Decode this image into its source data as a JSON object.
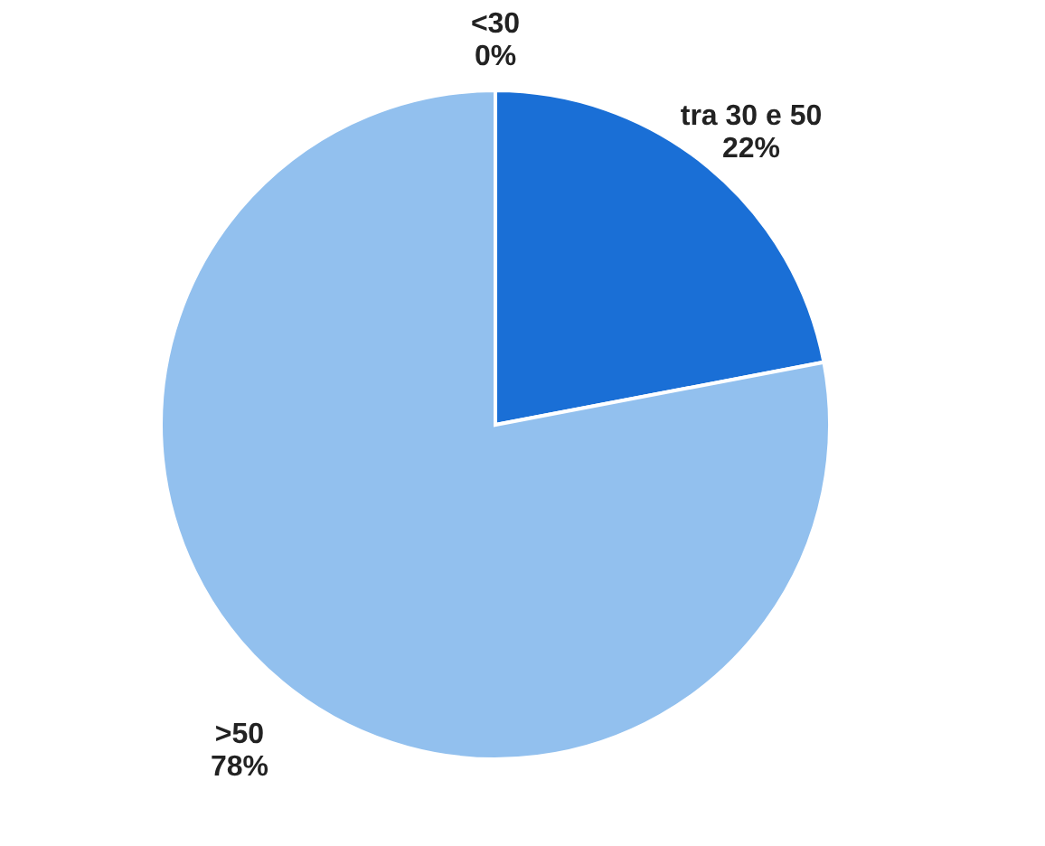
{
  "chart_data": {
    "type": "pie",
    "categories": [
      "<30",
      "tra 30 e 50",
      ">50"
    ],
    "values": [
      0,
      22,
      78
    ],
    "value_labels": [
      "0%",
      "22%",
      "78%"
    ],
    "colors": [
      "#4a7bc0",
      "#1a6fd6",
      "#92c0ee"
    ],
    "legend": false
  }
}
